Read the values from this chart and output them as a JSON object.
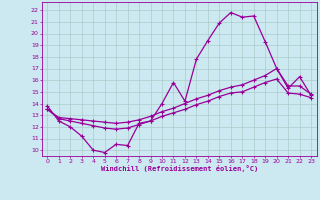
{
  "xlabel": "Windchill (Refroidissement éolien,°C)",
  "bg_color": "#cce8f0",
  "grid_color": "#aacccc",
  "line_color": "#990099",
  "ylim": [
    9.5,
    22.7
  ],
  "xlim": [
    -0.5,
    23.5
  ],
  "yticks": [
    10,
    11,
    12,
    13,
    14,
    15,
    16,
    17,
    18,
    19,
    20,
    21,
    22
  ],
  "xticks": [
    0,
    1,
    2,
    3,
    4,
    5,
    6,
    7,
    8,
    9,
    10,
    11,
    12,
    13,
    14,
    15,
    16,
    17,
    18,
    19,
    20,
    21,
    22,
    23
  ],
  "line1_x": [
    0,
    1,
    2,
    3,
    4,
    5,
    6,
    7,
    8,
    9,
    10,
    11,
    12,
    13,
    14,
    15,
    16,
    17,
    18,
    19,
    20,
    21,
    22,
    23
  ],
  "line1_y": [
    13.8,
    12.5,
    12.0,
    11.2,
    10.0,
    9.8,
    10.5,
    10.4,
    12.3,
    12.5,
    14.0,
    15.8,
    14.2,
    17.8,
    19.4,
    20.9,
    21.8,
    21.4,
    21.5,
    19.3,
    17.0,
    15.3,
    16.3,
    14.7
  ],
  "line2_x": [
    0,
    1,
    2,
    3,
    4,
    5,
    6,
    7,
    8,
    9,
    10,
    11,
    12,
    13,
    14,
    15,
    16,
    17,
    18,
    19,
    20,
    21,
    22,
    23
  ],
  "line2_y": [
    13.5,
    12.8,
    12.7,
    12.6,
    12.5,
    12.4,
    12.3,
    12.4,
    12.6,
    12.9,
    13.3,
    13.6,
    14.0,
    14.4,
    14.7,
    15.1,
    15.4,
    15.6,
    16.0,
    16.4,
    17.0,
    15.5,
    15.5,
    14.8
  ],
  "line3_x": [
    0,
    1,
    2,
    3,
    4,
    5,
    6,
    7,
    8,
    9,
    10,
    11,
    12,
    13,
    14,
    15,
    16,
    17,
    18,
    19,
    20,
    21,
    22,
    23
  ],
  "line3_y": [
    13.5,
    12.7,
    12.5,
    12.3,
    12.1,
    11.9,
    11.8,
    11.9,
    12.2,
    12.5,
    12.9,
    13.2,
    13.5,
    13.9,
    14.2,
    14.6,
    14.9,
    15.0,
    15.4,
    15.8,
    16.1,
    14.9,
    14.8,
    14.5
  ]
}
